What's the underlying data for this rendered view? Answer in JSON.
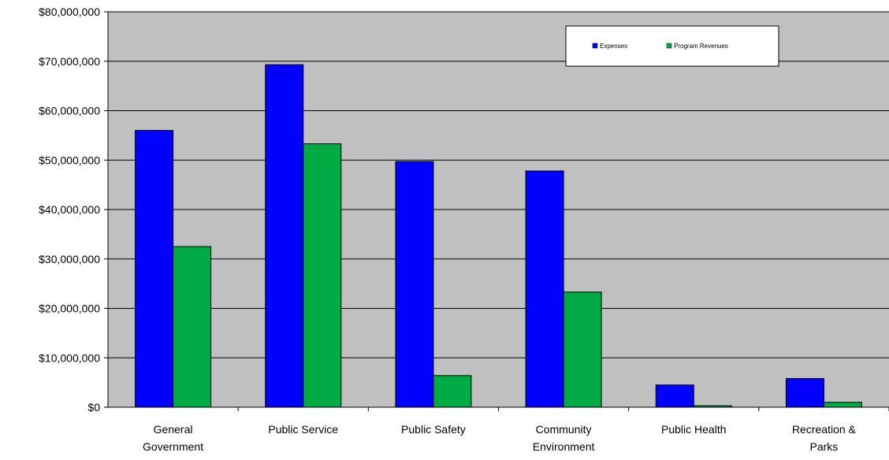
{
  "chart_data": {
    "type": "bar",
    "title": "",
    "xlabel": "",
    "ylabel": "",
    "categories": [
      [
        "General",
        "Government"
      ],
      [
        "Public Service"
      ],
      [
        "Public Safety"
      ],
      [
        "Community",
        "Environment"
      ],
      [
        "Public Health"
      ],
      [
        "Recreation &",
        "Parks"
      ]
    ],
    "series": [
      {
        "name": "Expenses",
        "color": "#0000ff",
        "values": [
          56000000,
          69300000,
          49700000,
          47800000,
          4500000,
          5800000
        ]
      },
      {
        "name": "Program Revenues",
        "color": "#00aa44",
        "values": [
          32500000,
          53300000,
          6400000,
          23300000,
          300000,
          1000000
        ]
      }
    ],
    "ylim": [
      0,
      80000000
    ],
    "y_ticks": [
      {
        "value": 0,
        "label": "$0"
      },
      {
        "value": 10000000,
        "label": "$10,000,000"
      },
      {
        "value": 20000000,
        "label": "$20,000,000"
      },
      {
        "value": 30000000,
        "label": "$30,000,000"
      },
      {
        "value": 40000000,
        "label": "$40,000,000"
      },
      {
        "value": 50000000,
        "label": "$50,000,000"
      },
      {
        "value": 60000000,
        "label": "$60,000,000"
      },
      {
        "value": 70000000,
        "label": "$70,000,000"
      },
      {
        "value": 80000000,
        "label": "$80,000,000"
      }
    ],
    "grid": true,
    "legend_position": "top-right",
    "plot_background": "#c0c0c0"
  }
}
